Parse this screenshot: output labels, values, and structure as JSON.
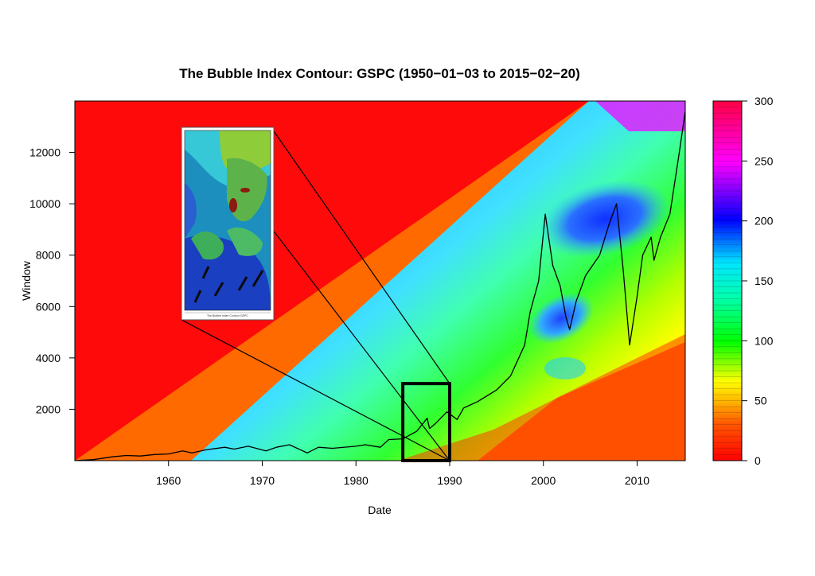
{
  "chart_data": {
    "type": "heatmap",
    "title": "The Bubble Index Contour: GSPC (1950−01−03 to 2015−02−20)",
    "xlabel": "Date",
    "ylabel": "Window",
    "xlim": [
      1950.0,
      2015.14
    ],
    "ylim": [
      0,
      14000
    ],
    "x_ticks": [
      1960,
      1970,
      1980,
      1990,
      2000,
      2010
    ],
    "x_tick_labels": [
      "1960",
      "1970",
      "1980",
      "1990",
      "2000",
      "2010"
    ],
    "y_ticks": [
      2000,
      4000,
      6000,
      8000,
      10000,
      12000
    ],
    "y_tick_labels": [
      "2000",
      "4000",
      "6000",
      "8000",
      "10000",
      "12000"
    ],
    "colorbar": {
      "range": [
        0,
        300
      ],
      "ticks": [
        0,
        50,
        100,
        150,
        200,
        250,
        300
      ],
      "tick_labels": [
        "0",
        "50",
        "100",
        "150",
        "200",
        "250",
        "300"
      ],
      "stops": [
        "#ff0000",
        "#ff7f00",
        "#ffff00",
        "#00ff00",
        "#00ffff",
        "#0000ff",
        "#ff00ff",
        "#ff0000"
      ]
    },
    "price_series": {
      "name": "",
      "color": "#000000",
      "x": [
        1950.0,
        1952.0,
        1954.0,
        1955.5,
        1957.0,
        1958.5,
        1960.0,
        1961.5,
        1962.5,
        1964.0,
        1966.0,
        1967.0,
        1968.5,
        1970.4,
        1971.5,
        1972.9,
        1974.8,
        1976.0,
        1977.5,
        1980.0,
        1981.0,
        1982.6,
        1983.5,
        1985.0,
        1986.5,
        1987.6,
        1987.85,
        1988.5,
        1989.7,
        1990.8,
        1991.5,
        1993.0,
        1995.0,
        1996.5,
        1998.0,
        1998.6,
        1999.5,
        2000.2,
        2001.0,
        2001.8,
        2002.4,
        2002.8,
        2003.5,
        2004.5,
        2006.0,
        2007.0,
        2007.8,
        2008.5,
        2009.2,
        2010.0,
        2010.6,
        2011.5,
        2011.8,
        2012.5,
        2013.5,
        2014.5,
        2015.14
      ],
      "y": [
        0,
        40,
        150,
        200,
        180,
        240,
        260,
        380,
        300,
        420,
        520,
        450,
        560,
        380,
        520,
        620,
        300,
        520,
        480,
        560,
        620,
        520,
        820,
        850,
        1150,
        1650,
        1250,
        1450,
        1900,
        1600,
        2050,
        2300,
        2750,
        3300,
        4500,
        5800,
        7000,
        9600,
        7600,
        6800,
        5600,
        5100,
        6200,
        7200,
        8000,
        9200,
        10000,
        7500,
        4500,
        6400,
        8000,
        8700,
        7800,
        8700,
        9600,
        12000,
        13600
      ]
    },
    "inset_region": {
      "x": [
        1985.0,
        1990.0
      ],
      "y": [
        0,
        3000
      ]
    }
  }
}
